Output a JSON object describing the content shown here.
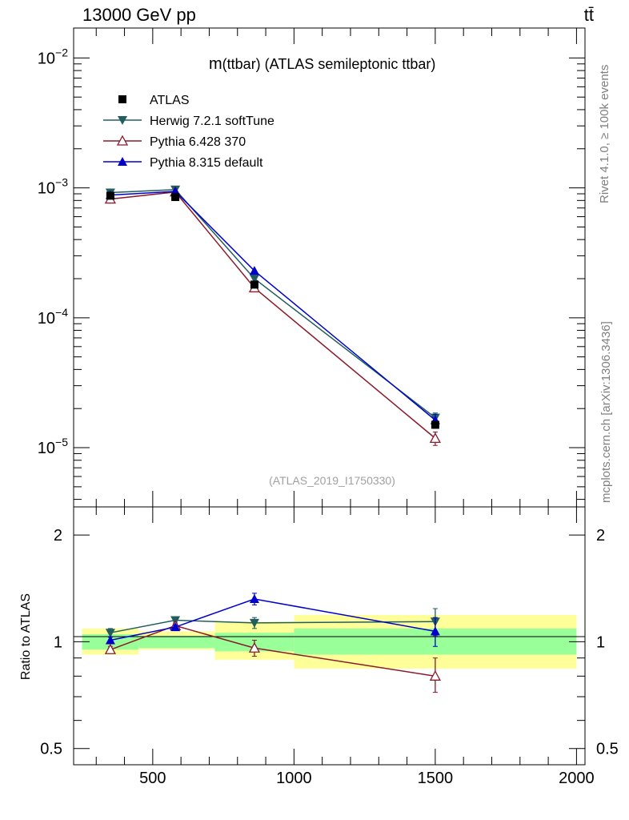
{
  "header": {
    "energy_label": "13000 GeV pp",
    "process_label": "tt̄"
  },
  "side_labels": {
    "rivet": "Rivet 4.1.0, ≥ 100k events",
    "mcplots": "mcplots.cern.ch [arXiv:1306.3436]"
  },
  "chart_data": [
    {
      "type": "line",
      "panel": "main",
      "title": "m(ttbar) (ATLAS semileptonic ttbar)",
      "title_prefix": "m",
      "title_rest": "(ttbar) (ATLAS semileptonic ttbar)",
      "analysis_id": "(ATLAS_2019_I1750330)",
      "yscale": "log",
      "xlim": [
        220,
        2030
      ],
      "ylim": [
        3.5e-06,
        0.017
      ],
      "y_ticks": [
        {
          "value": 0.01,
          "base": "10",
          "exp": "−2"
        },
        {
          "value": 0.001,
          "base": "10",
          "exp": "−3"
        },
        {
          "value": 0.0001,
          "base": "10",
          "exp": "−4"
        },
        {
          "value": 1e-05,
          "base": "10",
          "exp": "−5"
        }
      ],
      "legend_position": "top-left",
      "series": [
        {
          "name": "ATLAS",
          "marker": "square",
          "color": "#000000",
          "x": [
            350,
            580,
            860,
            1500
          ],
          "y": [
            0.00087,
            0.00085,
            0.00018,
            1.5e-05
          ]
        },
        {
          "name": "Herwig 7.2.1 softTune",
          "marker": "triangle-down",
          "color": "#225e5e",
          "x": [
            350,
            580,
            860,
            1500
          ],
          "y": [
            0.00092,
            0.00097,
            0.0002,
            1.7e-05
          ],
          "yerr": [
            0,
            0,
            0,
            1.5e-06
          ]
        },
        {
          "name": "Pythia 6.428 370",
          "marker": "triangle-up-open",
          "color": "#8b1a2b",
          "x": [
            350,
            580,
            860,
            1500
          ],
          "y": [
            0.00082,
            0.00093,
            0.00017,
            1.18e-05
          ],
          "yerr": [
            0,
            0,
            0,
            1.4e-06
          ]
        },
        {
          "name": "Pythia 8.315 default",
          "marker": "triangle-up",
          "color": "#0000cc",
          "x": [
            350,
            580,
            860,
            1500
          ],
          "y": [
            0.00088,
            0.00094,
            0.00023,
            1.63e-05
          ],
          "yerr": [
            0,
            0,
            0,
            1.8e-06
          ]
        }
      ]
    },
    {
      "type": "line",
      "panel": "ratio",
      "ylabel": "Ratio to ATLAS",
      "yscale": "log",
      "xlim": [
        220,
        2030
      ],
      "ylim": [
        0.45,
        2.4
      ],
      "x_ticks": [
        500,
        1000,
        1500,
        2000
      ],
      "y_ticks": [
        0.5,
        1,
        2
      ],
      "bands": [
        {
          "x0": 250,
          "x1": 450,
          "inner": [
            0.95,
            1.05
          ],
          "outer": [
            0.92,
            1.09
          ]
        },
        {
          "x0": 450,
          "x1": 720,
          "inner": [
            0.96,
            1.04
          ],
          "outer": [
            0.95,
            1.07
          ]
        },
        {
          "x0": 720,
          "x1": 1000,
          "inner": [
            0.94,
            1.06
          ],
          "outer": [
            0.89,
            1.14
          ]
        },
        {
          "x0": 1000,
          "x1": 2000,
          "inner": [
            0.92,
            1.09
          ],
          "outer": [
            0.84,
            1.19
          ]
        }
      ],
      "series": [
        {
          "name": "Herwig 7.2.1 softTune",
          "marker": "triangle-down",
          "color": "#225e5e",
          "x": [
            350,
            580,
            860,
            1500
          ],
          "y": [
            1.06,
            1.15,
            1.13,
            1.14
          ],
          "err": [
            [
              0.03,
              0.03
            ],
            [
              0.015,
              0.015
            ],
            [
              0.04,
              0.04
            ],
            [
              0.1,
              0.1
            ]
          ]
        },
        {
          "name": "Pythia 6.428 370",
          "marker": "triangle-up-open",
          "color": "#8b1a2b",
          "x": [
            350,
            580,
            860,
            1500
          ],
          "y": [
            0.95,
            1.11,
            0.96,
            0.8
          ],
          "err": [
            [
              0.02,
              0.02
            ],
            [
              0.015,
              0.015
            ],
            [
              0.05,
              0.05
            ],
            [
              0.08,
              0.1
            ]
          ]
        },
        {
          "name": "Pythia 8.315 default",
          "marker": "triangle-up",
          "color": "#0000cc",
          "x": [
            350,
            580,
            860,
            1500
          ],
          "y": [
            1.01,
            1.1,
            1.32,
            1.07
          ],
          "err": [
            [
              0.02,
              0.02
            ],
            [
              0.015,
              0.015
            ],
            [
              0.05,
              0.05
            ],
            [
              0.1,
              0.1
            ]
          ]
        }
      ]
    }
  ]
}
